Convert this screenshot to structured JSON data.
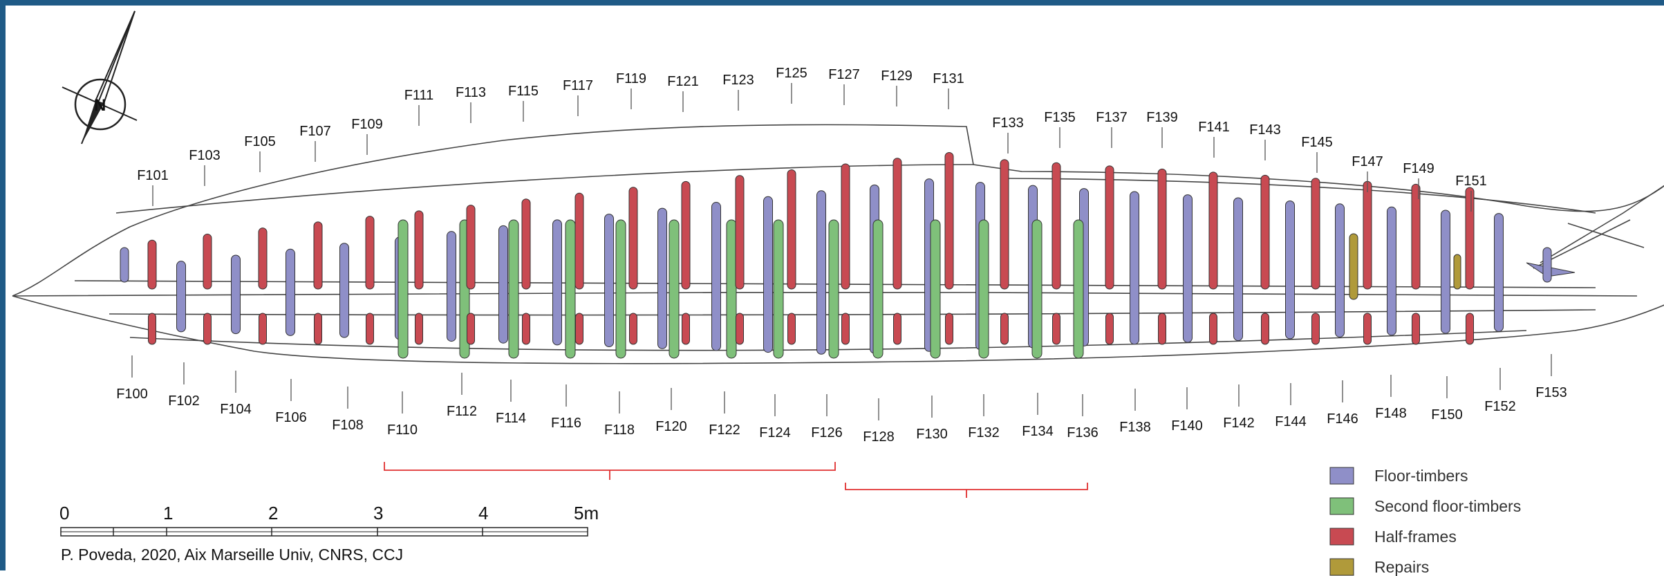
{
  "top_labels": [
    "F101",
    "F103",
    "F105",
    "F107",
    "F109",
    "F111",
    "F113",
    "F115",
    "F117",
    "F119",
    "F121",
    "F123",
    "F125",
    "F127",
    "F129",
    "F131",
    "F133",
    "F135",
    "F137",
    "F139",
    "F141",
    "F143",
    "F145",
    "F147",
    "F149",
    "F151"
  ],
  "bottom_labels": [
    "F100",
    "F102",
    "F104",
    "F106",
    "F108",
    "F110",
    "F112",
    "F114",
    "F116",
    "F118",
    "F120",
    "F122",
    "F124",
    "F126",
    "F128",
    "F130",
    "F132",
    "F134",
    "F136",
    "F138",
    "F140",
    "F142",
    "F144",
    "F146",
    "F148",
    "F150",
    "F152",
    "F153"
  ],
  "scale_bar": {
    "ticks": [
      "0",
      "1",
      "2",
      "3",
      "4",
      "5m"
    ]
  },
  "credit": "P. Poveda, 2020, Aix Marseille Univ, CNRS, CCJ",
  "legend": [
    {
      "label": "Floor-timbers",
      "color": "#8f8fc8"
    },
    {
      "label": "Second floor-timbers",
      "color": "#7fc07a"
    },
    {
      "label": "Half-frames",
      "color": "#c84a52"
    },
    {
      "label": "Repairs",
      "color": "#b09a3a"
    }
  ],
  "colors": {
    "floor": "#8f8fc8",
    "second": "#7fc07a",
    "half": "#c84a52",
    "repair": "#b09a3a",
    "bracket": "#e03030",
    "border": "#1f5a86"
  },
  "icons": {
    "north_arrow": "north-arrow-icon"
  }
}
